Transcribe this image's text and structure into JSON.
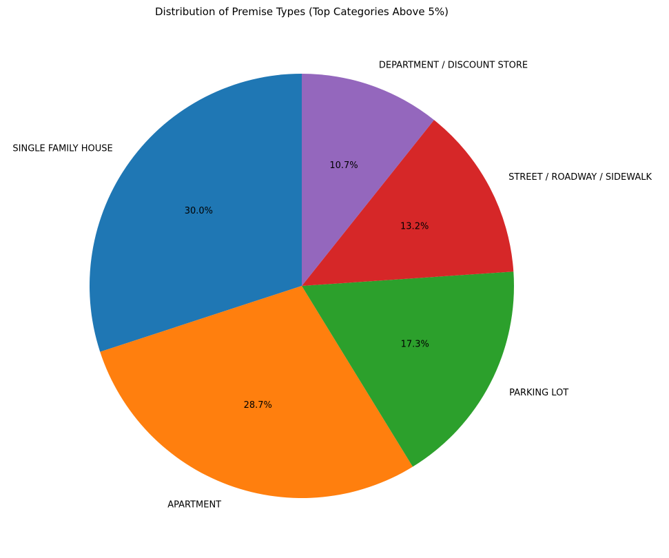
{
  "chart_data": {
    "type": "pie",
    "title": "Distribution of Premise Types (Top Categories Above 5%)",
    "start_angle_deg": 90,
    "direction": "counterclockwise",
    "slices": [
      {
        "label": "SINGLE FAMILY HOUSE",
        "value": 30.0,
        "pct_label": "30.0%",
        "color": "#1f77b4"
      },
      {
        "label": "APARTMENT",
        "value": 28.7,
        "pct_label": "28.7%",
        "color": "#ff7f0e"
      },
      {
        "label": "PARKING LOT",
        "value": 17.3,
        "pct_label": "17.3%",
        "color": "#2ca02c"
      },
      {
        "label": "STREET / ROADWAY / SIDEWALK",
        "value": 13.2,
        "pct_label": "13.2%",
        "color": "#d62728"
      },
      {
        "label": "DEPARTMENT / DISCOUNT STORE",
        "value": 10.7,
        "pct_label": "10.7%",
        "color": "#9467bd"
      }
    ]
  }
}
